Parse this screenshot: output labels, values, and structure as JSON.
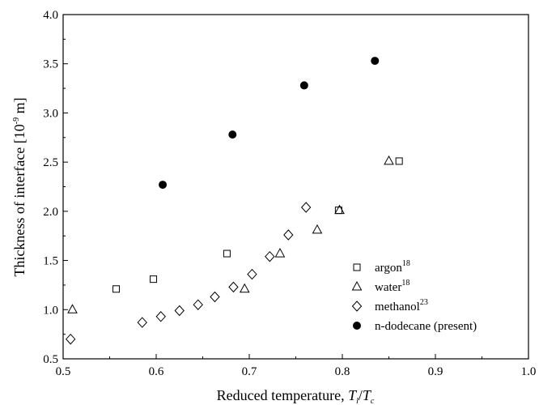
{
  "chart_data": {
    "type": "scatter",
    "xlabel": "Reduced temperature, T_l/T_c",
    "ylabel": "Thickness of interface [10⁻⁹ m]",
    "xlim": [
      0.5,
      1.0
    ],
    "ylim": [
      0.5,
      4.0
    ],
    "xticks": [
      "0.5",
      "0.6",
      "0.7",
      "0.8",
      "0.9",
      "1.0"
    ],
    "yticks": [
      "0.5",
      "1.0",
      "1.5",
      "2.0",
      "2.5",
      "3.0",
      "3.5",
      "4.0"
    ],
    "grid": false,
    "legend_position": "bottom-right",
    "series": [
      {
        "name": "argon",
        "sup": "18",
        "marker": "square-open",
        "x": [
          0.557,
          0.597,
          0.676,
          0.796,
          0.861
        ],
        "y": [
          1.21,
          1.31,
          1.57,
          2.01,
          2.51
        ]
      },
      {
        "name": "water",
        "sup": "18",
        "marker": "triangle-open",
        "x": [
          0.51,
          0.695,
          0.733,
          0.773,
          0.797,
          0.85
        ],
        "y": [
          1.0,
          1.21,
          1.57,
          1.81,
          2.01,
          2.51
        ]
      },
      {
        "name": "methanol",
        "sup": "23",
        "marker": "diamond-open",
        "x": [
          0.508,
          0.585,
          0.605,
          0.625,
          0.645,
          0.663,
          0.683,
          0.703,
          0.722,
          0.742,
          0.761
        ],
        "y": [
          0.7,
          0.87,
          0.93,
          0.99,
          1.05,
          1.13,
          1.23,
          1.36,
          1.54,
          1.76,
          2.04
        ]
      },
      {
        "name": "n-dodecane (present)",
        "sup": "",
        "marker": "circle-filled",
        "x": [
          0.607,
          0.682,
          0.759,
          0.835
        ],
        "y": [
          2.27,
          2.78,
          3.28,
          3.53
        ]
      }
    ]
  }
}
